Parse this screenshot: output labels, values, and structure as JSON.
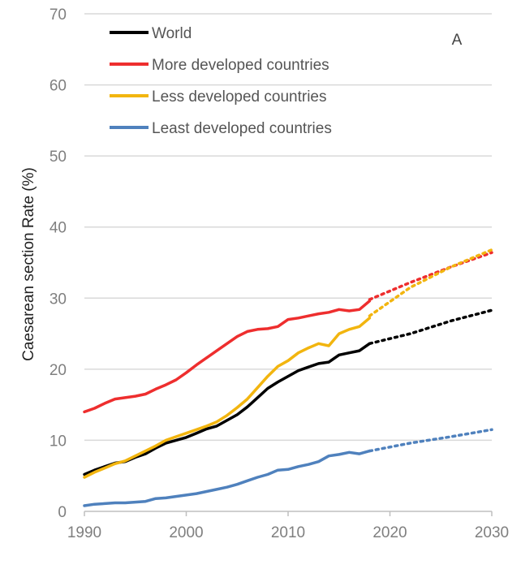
{
  "chart_data": {
    "type": "line",
    "title": "",
    "xlabel": "",
    "ylabel": "Caesarean section Rate (%)",
    "panel_label": "A",
    "xlim": [
      1990,
      2030
    ],
    "ylim": [
      0,
      70
    ],
    "x_ticks": [
      1990,
      2000,
      2010,
      2020,
      2030
    ],
    "y_ticks": [
      0,
      10,
      20,
      30,
      40,
      50,
      60,
      70
    ],
    "x_tick_labels": [
      "1990",
      "2000",
      "2010",
      "2020",
      "2030"
    ],
    "y_tick_labels": [
      "0",
      "10",
      "20",
      "30",
      "40",
      "50",
      "60",
      "70"
    ],
    "grid": "horizontal",
    "legend_position": "top-left",
    "series": [
      {
        "name": "World",
        "color": "#000000",
        "observed": {
          "x": [
            1990,
            1991,
            1992,
            1993,
            1994,
            1995,
            1996,
            1997,
            1998,
            1999,
            2000,
            2001,
            2002,
            2003,
            2004,
            2005,
            2006,
            2007,
            2008,
            2009,
            2010,
            2011,
            2012,
            2013,
            2014,
            2015,
            2016,
            2017,
            2018
          ],
          "y": [
            5.2,
            5.8,
            6.3,
            6.8,
            7.0,
            7.6,
            8.1,
            8.9,
            9.6,
            10.0,
            10.4,
            11.0,
            11.6,
            12.0,
            12.8,
            13.6,
            14.7,
            16.0,
            17.3,
            18.2,
            19.0,
            19.8,
            20.3,
            20.8,
            21.0,
            22.0,
            22.3,
            22.6,
            23.6
          ]
        },
        "projected": {
          "x": [
            2018,
            2022,
            2026,
            2030
          ],
          "y": [
            23.6,
            25.0,
            26.8,
            28.3
          ]
        }
      },
      {
        "name": "More developed countries",
        "color": "#ee2e2e",
        "observed": {
          "x": [
            1990,
            1991,
            1992,
            1993,
            1994,
            1995,
            1996,
            1997,
            1998,
            1999,
            2000,
            2001,
            2002,
            2003,
            2004,
            2005,
            2006,
            2007,
            2008,
            2009,
            2010,
            2011,
            2012,
            2013,
            2014,
            2015,
            2016,
            2017,
            2018
          ],
          "y": [
            14.0,
            14.5,
            15.2,
            15.8,
            16.0,
            16.2,
            16.5,
            17.2,
            17.8,
            18.5,
            19.5,
            20.6,
            21.6,
            22.6,
            23.6,
            24.6,
            25.3,
            25.6,
            25.7,
            26.0,
            27.0,
            27.2,
            27.5,
            27.8,
            28.0,
            28.4,
            28.2,
            28.4,
            29.6
          ]
        },
        "projected": {
          "x": [
            2018,
            2022,
            2026,
            2030
          ],
          "y": [
            29.8,
            32.2,
            34.4,
            36.4
          ]
        }
      },
      {
        "name": "Less developed countries",
        "color": "#f2b50f",
        "observed": {
          "x": [
            1990,
            1991,
            1992,
            1993,
            1994,
            1995,
            1996,
            1997,
            1998,
            1999,
            2000,
            2001,
            2002,
            2003,
            2004,
            2005,
            2006,
            2007,
            2008,
            2009,
            2010,
            2011,
            2012,
            2013,
            2014,
            2015,
            2016,
            2017,
            2018
          ],
          "y": [
            4.8,
            5.5,
            6.1,
            6.7,
            7.1,
            7.8,
            8.5,
            9.2,
            10.0,
            10.5,
            11.0,
            11.5,
            12.0,
            12.6,
            13.5,
            14.6,
            15.8,
            17.4,
            19.0,
            20.4,
            21.2,
            22.3,
            23.0,
            23.6,
            23.3,
            25.0,
            25.6,
            26.0,
            27.2
          ]
        },
        "projected": {
          "x": [
            2018,
            2022,
            2026,
            2030
          ],
          "y": [
            27.5,
            31.5,
            34.4,
            36.8
          ]
        }
      },
      {
        "name": "Least developed countries",
        "color": "#4f81bd",
        "observed": {
          "x": [
            1990,
            1991,
            1992,
            1993,
            1994,
            1995,
            1996,
            1997,
            1998,
            1999,
            2000,
            2001,
            2002,
            2003,
            2004,
            2005,
            2006,
            2007,
            2008,
            2009,
            2010,
            2011,
            2012,
            2013,
            2014,
            2015,
            2016,
            2017,
            2018
          ],
          "y": [
            0.8,
            1.0,
            1.1,
            1.2,
            1.2,
            1.3,
            1.4,
            1.8,
            1.9,
            2.1,
            2.3,
            2.5,
            2.8,
            3.1,
            3.4,
            3.8,
            4.3,
            4.8,
            5.2,
            5.8,
            5.9,
            6.3,
            6.6,
            7.0,
            7.8,
            8.0,
            8.3,
            8.1,
            8.5
          ]
        },
        "projected": {
          "x": [
            2018,
            2022,
            2026,
            2030
          ],
          "y": [
            8.5,
            9.6,
            10.5,
            11.5
          ]
        }
      }
    ]
  }
}
